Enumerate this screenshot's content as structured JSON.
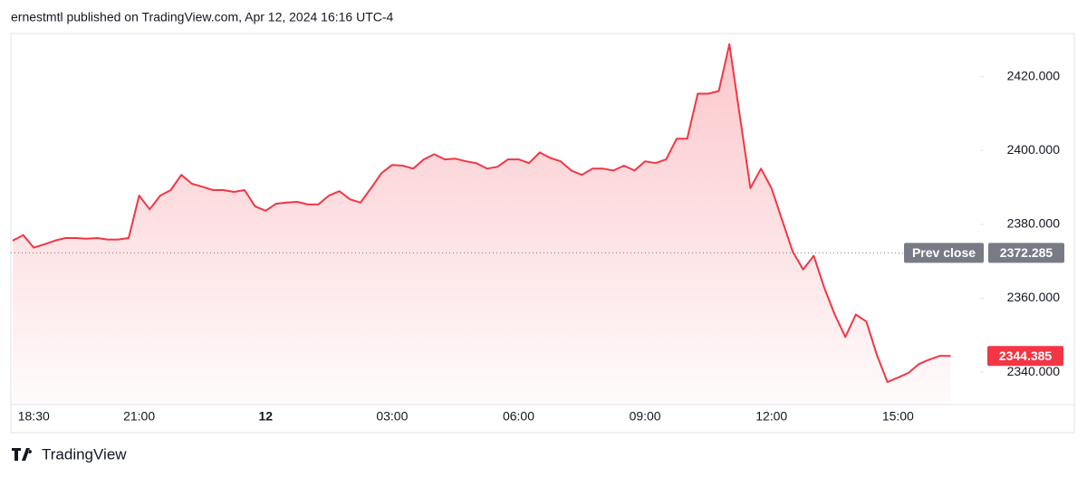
{
  "header": "ernestmtl published on TradingView.com, Apr 12, 2024 16:16 UTC-4",
  "footer": "TradingView",
  "chart_data": {
    "type": "area",
    "categories": [
      null,
      null,
      "18:30",
      null,
      null,
      null,
      null,
      null,
      null,
      null,
      null,
      null,
      "21:00",
      null,
      null,
      null,
      null,
      null,
      null,
      null,
      null,
      null,
      null,
      null,
      "12",
      null,
      null,
      null,
      null,
      null,
      null,
      null,
      null,
      null,
      null,
      null,
      "03:00",
      null,
      null,
      null,
      null,
      null,
      null,
      null,
      null,
      null,
      null,
      null,
      "06:00",
      null,
      null,
      null,
      null,
      null,
      null,
      null,
      null,
      null,
      null,
      null,
      "09:00",
      null,
      null,
      null,
      null,
      null,
      null,
      null,
      null,
      null,
      null,
      null,
      "12:00",
      null,
      null,
      null,
      null,
      null,
      null,
      null,
      null,
      null,
      null,
      null,
      "15:00",
      null,
      null,
      null,
      null,
      null
    ],
    "series": [
      {
        "color": "#f23645",
        "values": [
          2375.6,
          2377.1,
          2373.7,
          2374.6,
          2375.6,
          2376.3,
          2376.3,
          2376.1,
          2376.3,
          2375.9,
          2375.9,
          2376.3,
          2387.8,
          2384.1,
          2387.8,
          2389.3,
          2393.4,
          2391.0,
          2390.2,
          2389.3,
          2389.3,
          2388.8,
          2389.3,
          2384.9,
          2383.7,
          2385.6,
          2385.9,
          2386.1,
          2385.4,
          2385.4,
          2387.8,
          2389.0,
          2386.8,
          2385.9,
          2389.8,
          2393.9,
          2396.1,
          2395.9,
          2395.1,
          2397.6,
          2399.0,
          2397.6,
          2397.8,
          2397.1,
          2396.6,
          2395.1,
          2395.6,
          2397.6,
          2397.6,
          2396.6,
          2399.5,
          2398.0,
          2397.1,
          2394.6,
          2393.4,
          2395.1,
          2395.1,
          2394.6,
          2395.9,
          2394.6,
          2397.1,
          2396.6,
          2397.6,
          2403.2,
          2403.2,
          2415.4,
          2415.4,
          2416.1,
          2428.8,
          2409.3,
          2389.8,
          2395.1,
          2389.8,
          2381.2,
          2372.7,
          2367.8,
          2371.5,
          2362.9,
          2355.6,
          2349.5,
          2355.6,
          2353.7,
          2344.6,
          2337.3,
          2338.5,
          2339.8,
          2342.2,
          2343.4,
          2344.4,
          2344.385
        ]
      }
    ],
    "ylim": [
      2331.2,
      2431.7
    ],
    "yticks": [
      {
        "value": 2340,
        "label": "2340.000"
      },
      {
        "value": 2360,
        "label": "2360.000"
      },
      {
        "value": 2380,
        "label": "2380.000"
      },
      {
        "value": 2400,
        "label": "2400.000"
      },
      {
        "value": 2420,
        "label": "2420.000"
      }
    ],
    "prev_close": 2372.285,
    "prev_close_label": "Prev close",
    "prev_close_color": "#787b86"
  }
}
